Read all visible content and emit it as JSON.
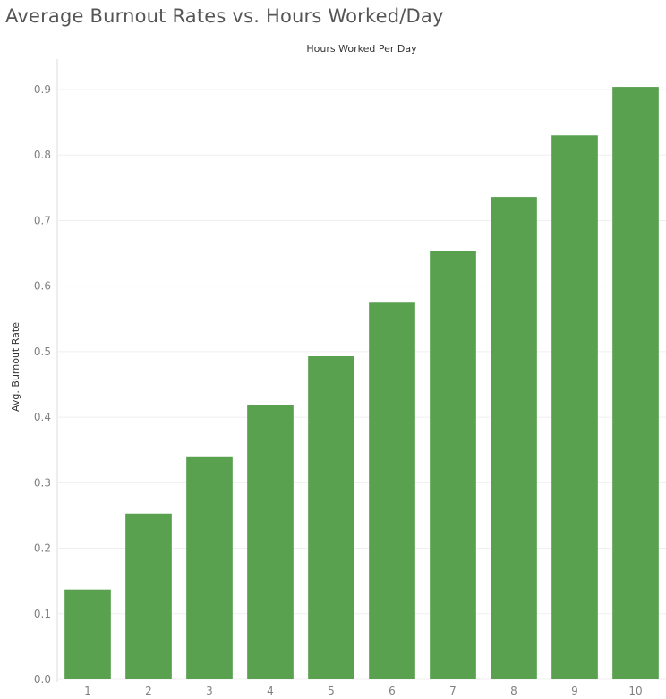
{
  "title": "Average Burnout Rates vs. Hours Worked/Day",
  "colors": {
    "bar": "#59A14F",
    "grid": "#EFEFEF",
    "axis": "#DDDDDD"
  },
  "chart_data": {
    "type": "bar",
    "title": "Average Burnout Rates vs. Hours Worked/Day",
    "xlabel": "Hours Worked Per Day",
    "ylabel": "Avg. Burnout Rate",
    "categories": [
      "1",
      "2",
      "3",
      "4",
      "5",
      "6",
      "7",
      "8",
      "9",
      "10"
    ],
    "values": [
      0.137,
      0.253,
      0.339,
      0.418,
      0.493,
      0.576,
      0.654,
      0.736,
      0.83,
      0.904
    ],
    "yticks": [
      "0.0",
      "0.1",
      "0.2",
      "0.3",
      "0.4",
      "0.5",
      "0.6",
      "0.7",
      "0.8",
      "0.9"
    ],
    "ylim": [
      0,
      0.9
    ],
    "grid": true
  }
}
